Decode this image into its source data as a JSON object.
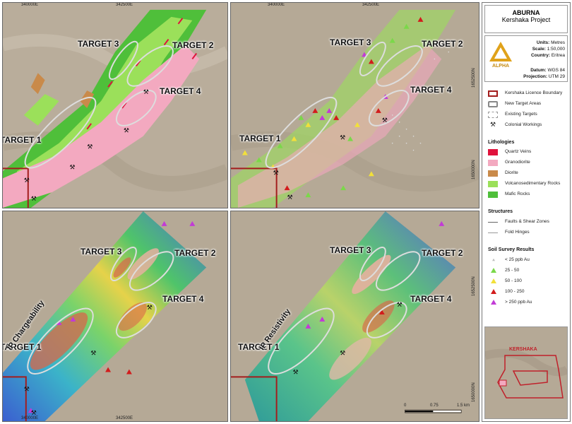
{
  "panels": {
    "top_left": {
      "targets": [
        "TARGET 3",
        "TARGET 2",
        "TARGET 4",
        "TARGET 1"
      ],
      "coords": [
        "340000E",
        "342500E"
      ]
    },
    "top_right": {
      "targets": [
        "TARGET 3",
        "TARGET 2",
        "TARGET 4",
        "TARGET 1"
      ],
      "coords": [
        "340000E",
        "342500E",
        "1652500N",
        "1650000N"
      ]
    },
    "bottom_left": {
      "targets": [
        "TARGET 3",
        "TARGET 2",
        "TARGET 4",
        "TARGET 1"
      ],
      "method": "IP Chargeability",
      "coords": [
        "340000E",
        "342500E"
      ]
    },
    "bottom_right": {
      "targets": [
        "TARGET 3",
        "TARGET 2",
        "TARGET 4",
        "TARGET 1"
      ],
      "method": "IP Resistivity",
      "coords": [
        "1650000N",
        "1652500N"
      ],
      "scalebar": [
        "0",
        "0.75",
        "1.5 km"
      ]
    }
  },
  "legend": {
    "title": "ABURNA",
    "subtitle": "Kershaka Project",
    "units_label": "Units:",
    "units": "Metres",
    "scale_label": "Scale:",
    "scale": "1:50,000",
    "country_label": "Country:",
    "country": "Eritrea",
    "datum_label": "Datum:",
    "datum": "WGS 84",
    "projection_label": "Projection:",
    "projection": "UTM 29",
    "logo_text": "ALPHA",
    "boundaries": [
      {
        "label": "Kershaka Licence Boundary",
        "color": "#a31d1d"
      },
      {
        "label": "New Target Areas",
        "color": "#888888"
      },
      {
        "label": "Existing Targets",
        "color": "#bbbbbb"
      },
      {
        "label": "Colonial Workings",
        "color": "#000000"
      }
    ],
    "lithologies_title": "Lithologies",
    "lithologies": [
      {
        "label": "Quartz Veins",
        "color": "#e0123c"
      },
      {
        "label": "Granodiorite",
        "color": "#f3a9c0"
      },
      {
        "label": "Diorite",
        "color": "#c98a4a"
      },
      {
        "label": "Volcanosedimentary Rocks",
        "color": "#9be05a"
      },
      {
        "label": "Mafic Rocks",
        "color": "#4fbf3a"
      }
    ],
    "structures_title": "Structures",
    "structures": [
      "Faults & Shear Zones",
      "Fold Hinges"
    ],
    "soil_title": "Soil Survey Results",
    "soil": [
      {
        "label": "< 25 ppb Au",
        "color": "#bdbdbd"
      },
      {
        "label": "25 - 50",
        "color": "#7bd84a"
      },
      {
        "label": "50 - 100",
        "color": "#f2e03a"
      },
      {
        "label": "100 - 250",
        "color": "#d21c1c"
      },
      {
        "label": "> 250 ppb Au",
        "color": "#c23bd6"
      }
    ],
    "inset_label": "KERSHAKA"
  }
}
